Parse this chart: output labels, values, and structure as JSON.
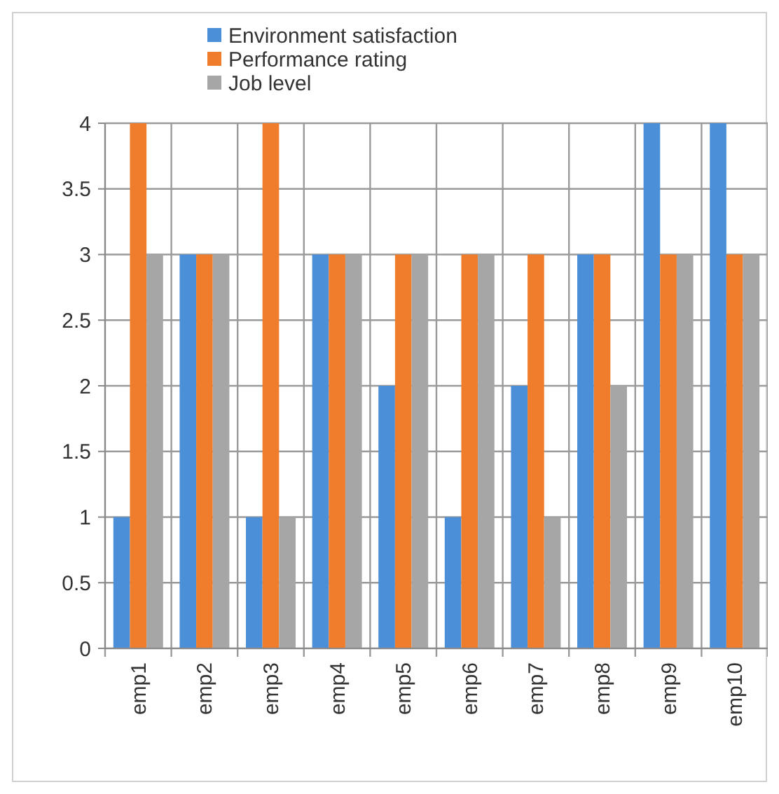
{
  "chart_data": {
    "type": "bar",
    "categories": [
      "emp1",
      "emp2",
      "emp3",
      "emp4",
      "emp5",
      "emp6",
      "emp7",
      "emp8",
      "emp9",
      "emp10"
    ],
    "series": [
      {
        "name": "Environment satisfaction",
        "color": "#4a8fd8",
        "values": [
          1,
          3,
          1,
          3,
          2,
          1,
          2,
          3,
          4,
          4
        ]
      },
      {
        "name": "Performance rating",
        "color": "#f07d2c",
        "values": [
          4,
          3,
          4,
          3,
          3,
          3,
          3,
          3,
          3,
          3
        ]
      },
      {
        "name": "Job level",
        "color": "#a6a6a6",
        "values": [
          3,
          3,
          1,
          3,
          3,
          3,
          1,
          2,
          3,
          3
        ]
      }
    ],
    "ylim": [
      0,
      4
    ],
    "yticks": [
      0,
      0.5,
      1,
      1.5,
      2,
      2.5,
      3,
      3.5,
      4
    ],
    "grid": true,
    "legend": "top"
  }
}
